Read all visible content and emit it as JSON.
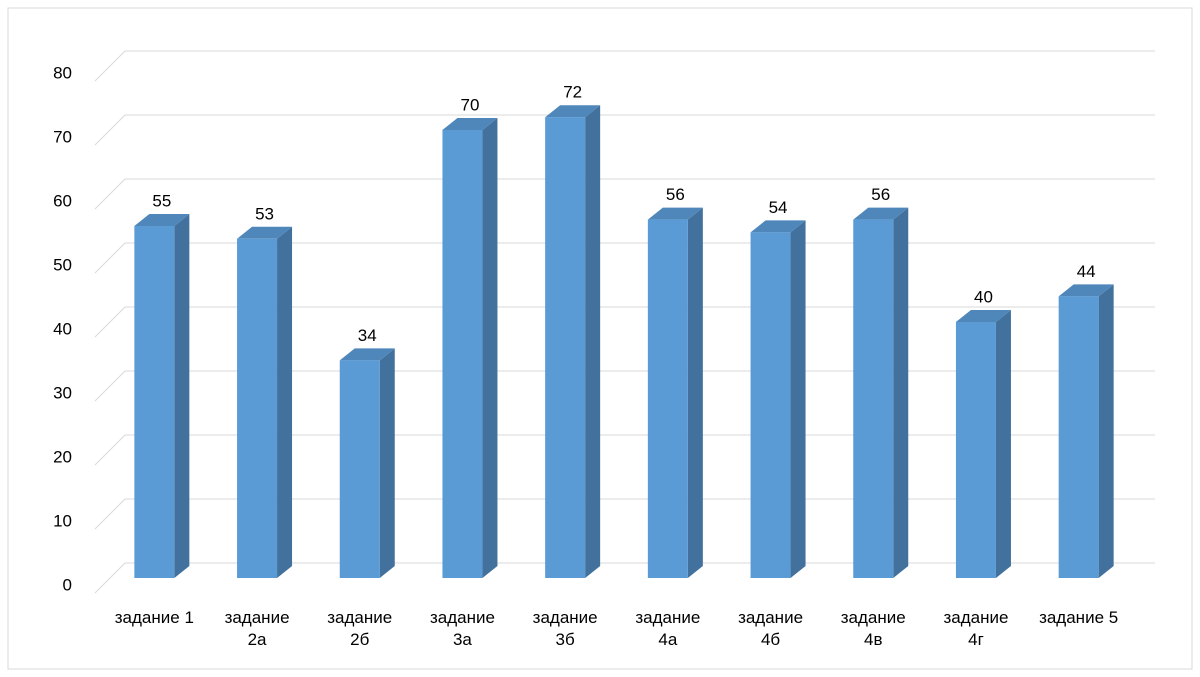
{
  "chart_data": {
    "type": "bar3d",
    "categories": [
      "задание 1",
      "задание 2а",
      "задание 2б",
      "задание 3а",
      "задание 3б",
      "задание 4а",
      "задание 4б",
      "задание 4в",
      "задание 4г",
      "задание 5"
    ],
    "values": [
      55,
      53,
      34,
      70,
      72,
      56,
      54,
      56,
      40,
      44
    ],
    "color": "#5b9bd5",
    "ylim": [
      0,
      80
    ],
    "yticks": [
      0,
      10,
      20,
      30,
      40,
      50,
      60,
      70,
      80
    ],
    "grid": true
  }
}
